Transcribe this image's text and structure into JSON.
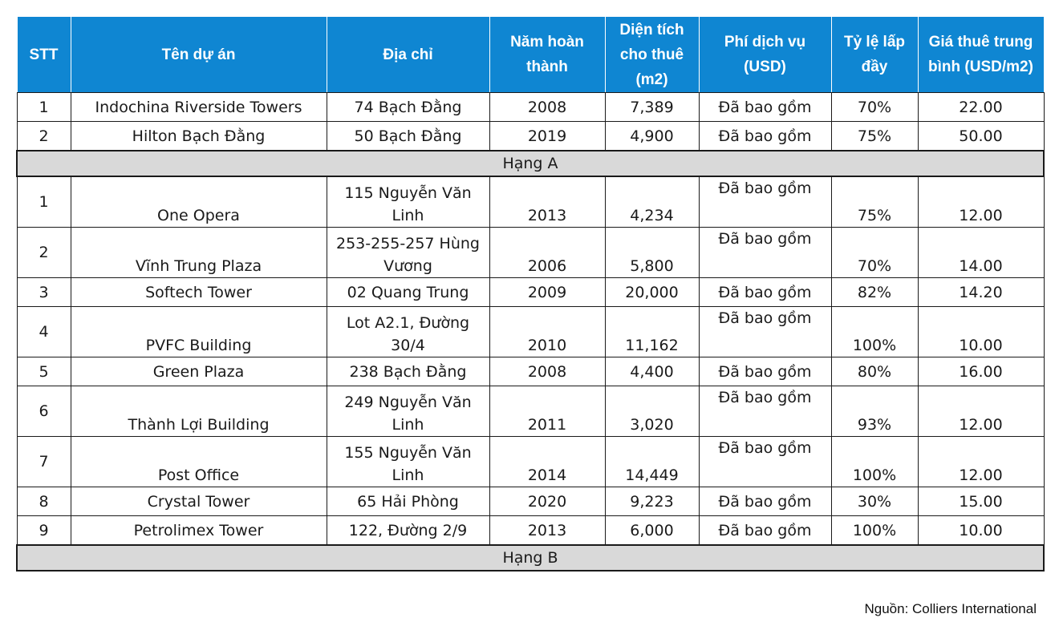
{
  "headers": [
    "STT",
    "Tên dự án",
    "Địa chỉ",
    "Năm hoàn thành",
    "Diện tích cho thuê (m2)",
    "Phí dịch vụ (USD)",
    "Tỷ lệ lấp đầy",
    "Giá thuê trung bình (USD/m2)"
  ],
  "groupA": {
    "label": "Hạng A",
    "rows": [
      {
        "stt": "1",
        "name": "Indochina Riverside Towers",
        "address": "74 Bạch Đằng",
        "year": "2008",
        "area": "7,389",
        "fee": "Đã bao gồm",
        "occupancy": "70%",
        "rent": "22.00"
      },
      {
        "stt": "2",
        "name": "Hilton Bạch Đằng",
        "address": "50 Bạch Đằng",
        "year": "2019",
        "area": "4,900",
        "fee": "Đã bao gồm",
        "occupancy": "75%",
        "rent": "50.00"
      }
    ]
  },
  "groupB": {
    "label": "Hạng B",
    "rows": [
      {
        "stt": "1",
        "name": "One Opera",
        "address": "115 Nguyễn Văn Linh",
        "year": "2013",
        "area": "4,234",
        "fee": "Đã bao gồm",
        "occupancy": "75%",
        "rent": "12.00"
      },
      {
        "stt": "2",
        "name": "Vĩnh Trung Plaza",
        "address": "253-255-257 Hùng Vương",
        "year": "2006",
        "area": "5,800",
        "fee": "Đã bao gồm",
        "occupancy": "70%",
        "rent": "14.00"
      },
      {
        "stt": "3",
        "name": "Softech Tower",
        "address": "02 Quang Trung",
        "year": "2009",
        "area": "20,000",
        "fee": "Đã bao gồm",
        "occupancy": "82%",
        "rent": "14.20"
      },
      {
        "stt": "4",
        "name": "PVFC Building",
        "address": "Lot A2.1, Đường 30/4",
        "year": "2010",
        "area": "11,162",
        "fee": "Đã bao gồm",
        "occupancy": "100%",
        "rent": "10.00"
      },
      {
        "stt": "5",
        "name": "Green Plaza",
        "address": "238 Bạch Đằng",
        "year": "2008",
        "area": "4,400",
        "fee": "Đã bao gồm",
        "occupancy": "80%",
        "rent": "16.00"
      },
      {
        "stt": "6",
        "name": "Thành Lợi Building",
        "address": "249 Nguyễn Văn Linh",
        "year": "2011",
        "area": "3,020",
        "fee": "Đã bao gồm",
        "occupancy": "93%",
        "rent": "12.00"
      },
      {
        "stt": "7",
        "name": "Post Office",
        "address": "155 Nguyễn Văn Linh",
        "year": "2014",
        "area": "14,449",
        "fee": "Đã bao gồm",
        "occupancy": "100%",
        "rent": "12.00"
      },
      {
        "stt": "8",
        "name": "Crystal Tower",
        "address": "65 Hải Phòng",
        "year": "2020",
        "area": "9,223",
        "fee": "Đã bao gồm",
        "occupancy": "30%",
        "rent": "15.00"
      },
      {
        "stt": "9",
        "name": "Petrolimex Tower",
        "address": "122, Đường 2/9",
        "year": "2013",
        "area": "6,000",
        "fee": "Đã bao gồm",
        "occupancy": "100%",
        "rent": "10.00"
      }
    ]
  },
  "source": "Nguồn: Colliers International"
}
